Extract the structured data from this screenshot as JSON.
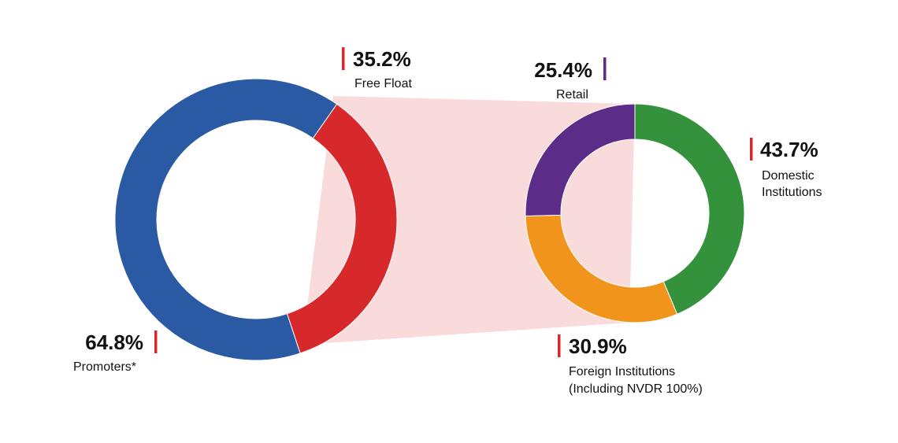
{
  "chart_data": [
    {
      "type": "pie",
      "variant": "donut",
      "name": "overall",
      "slices": [
        {
          "label": "Promoters*",
          "value": 64.8,
          "display": "64.8%",
          "color": "#2a5aa3"
        },
        {
          "label": "Free Float",
          "value": 35.2,
          "display": "35.2%",
          "color": "#d7282b"
        }
      ]
    },
    {
      "type": "pie",
      "variant": "donut",
      "name": "free-float-breakdown",
      "slices": [
        {
          "label": "Domestic Institutions",
          "lines": [
            "Domestic",
            "Institutions"
          ],
          "value": 43.7,
          "display": "43.7%",
          "color": "#34923c"
        },
        {
          "label": "Foreign Institutions (Including NVDR 100%)",
          "lines": [
            "Foreign Institutions",
            "(Including NVDR 100%)"
          ],
          "value": 30.9,
          "display": "30.9%",
          "color": "#f0941c"
        },
        {
          "label": "Retail",
          "value": 25.4,
          "display": "25.4%",
          "color": "#5c2d88"
        }
      ]
    }
  ],
  "connector_color": "#fadbdc",
  "marker_color_red": "#d7282b",
  "marker_color_purple": "#5c2d88"
}
